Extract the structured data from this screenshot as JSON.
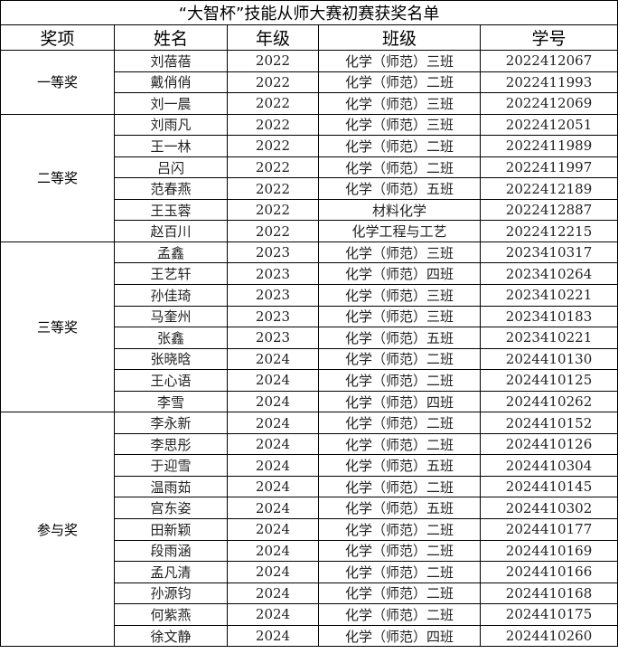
{
  "title": "“大智杯”技能从师大赛初赛获奖名单",
  "headers": [
    "奖项",
    "姓名",
    "年级",
    "班级",
    "学号"
  ],
  "groups": [
    {
      "award": "一等奖",
      "rows": [
        [
          "刘蓓蓓",
          "2022",
          "化学（师范）三班",
          "2022412067"
        ],
        [
          "戴俏俏",
          "2022",
          "化学（师范）二班",
          "2022411993"
        ],
        [
          "刘一晨",
          "2022",
          "化学（师范）三班",
          "2022412069"
        ]
      ]
    },
    {
      "award": "二等奖",
      "rows": [
        [
          "刘雨凡",
          "2022",
          "化学（师范）三班",
          "2022412051"
        ],
        [
          "王一林",
          "2022",
          "化学（师范）二班",
          "2022411989"
        ],
        [
          "吕闪",
          "2022",
          "化学（师范）二班",
          "2022411997"
        ],
        [
          "范春燕",
          "2022",
          "化学（师范）五班",
          "2022412189"
        ],
        [
          "王玉蓉",
          "2022",
          "材料化学",
          "2022412887"
        ],
        [
          "赵百川",
          "2022",
          "化学工程与工艺",
          "2022412215"
        ]
      ]
    },
    {
      "award": "三等奖",
      "rows": [
        [
          "孟鑫",
          "2023",
          "化学（师范）三班",
          "2023410317"
        ],
        [
          "王艺轩",
          "2023",
          "化学（师范）四班",
          "2023410264"
        ],
        [
          "孙佳琦",
          "2023",
          "化学（师范）三班",
          "2023410221"
        ],
        [
          "马奎州",
          "2023",
          "化学（师范）三班",
          "2023410183"
        ],
        [
          "张鑫",
          "2023",
          "化学（师范）五班",
          "2023410221"
        ],
        [
          "张晓晗",
          "2024",
          "化学（师范）二班",
          "2024410130"
        ],
        [
          "王心语",
          "2024",
          "化学（师范）二班",
          "2024410125"
        ],
        [
          "李雪",
          "2024",
          "化学（师范）四班",
          "2024410262"
        ]
      ]
    },
    {
      "award": "参与奖",
      "rows": [
        [
          "李永新",
          "2024",
          "化学（师范）二班",
          "2024410152"
        ],
        [
          "李思彤",
          "2024",
          "化学（师范）二班",
          "2024410126"
        ],
        [
          "于迎雪",
          "2024",
          "化学（师范）五班",
          "2024410304"
        ],
        [
          "温雨茹",
          "2024",
          "化学（师范）二班",
          "2024410145"
        ],
        [
          "宫东姿",
          "2024",
          "化学（师范）五班",
          "2024410302"
        ],
        [
          "田新颖",
          "2024",
          "化学（师范）二班",
          "2024410177"
        ],
        [
          "段雨涵",
          "2024",
          "化学（师范）二班",
          "2024410169"
        ],
        [
          "孟凡清",
          "2024",
          "化学（师范）二班",
          "2024410166"
        ],
        [
          "孙源钧",
          "2024",
          "化学（师范）二班",
          "2024410168"
        ],
        [
          "何紫燕",
          "2024",
          "化学（师范）二班",
          "2024410175"
        ],
        [
          "徐文静",
          "2024",
          "化学（师范）四班",
          "2024410260"
        ]
      ]
    }
  ]
}
